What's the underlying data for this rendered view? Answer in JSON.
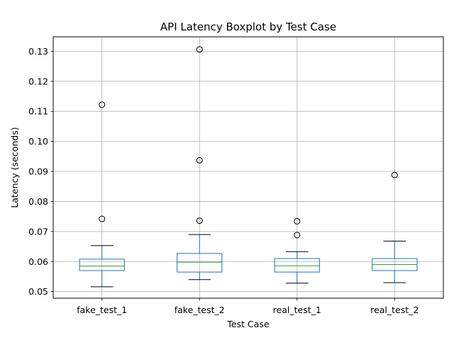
{
  "chart_data": {
    "type": "boxplot",
    "title": "API Latency Boxplot by Test Case",
    "xlabel": "Test Case",
    "ylabel": "Latency (seconds)",
    "ylim": [
      0.0478,
      0.1348
    ],
    "yticks": [
      "0.05",
      "0.06",
      "0.07",
      "0.08",
      "0.09",
      "0.10",
      "0.11",
      "0.12",
      "0.13"
    ],
    "grid": true,
    "colors": {
      "box": "#1f77b4",
      "median": "#2ca02c",
      "whisker": "#000000",
      "grid": "#b0b0b0"
    },
    "categories": [
      "fake_test_1",
      "fake_test_2",
      "real_test_1",
      "real_test_2"
    ],
    "boxes": [
      {
        "whislo": 0.0516,
        "q1": 0.057,
        "med": 0.0585,
        "q3": 0.0608,
        "whishi": 0.0653,
        "fliers": [
          0.0742,
          0.1122
        ]
      },
      {
        "whislo": 0.054,
        "q1": 0.0565,
        "med": 0.0598,
        "q3": 0.0627,
        "whishi": 0.069,
        "fliers": [
          0.0736,
          0.0937,
          0.1306
        ]
      },
      {
        "whislo": 0.0528,
        "q1": 0.0565,
        "med": 0.0586,
        "q3": 0.061,
        "whishi": 0.0633,
        "fliers": [
          0.0688,
          0.0734
        ]
      },
      {
        "whislo": 0.053,
        "q1": 0.057,
        "med": 0.059,
        "q3": 0.061,
        "whishi": 0.0668,
        "fliers": [
          0.0888
        ]
      }
    ]
  }
}
